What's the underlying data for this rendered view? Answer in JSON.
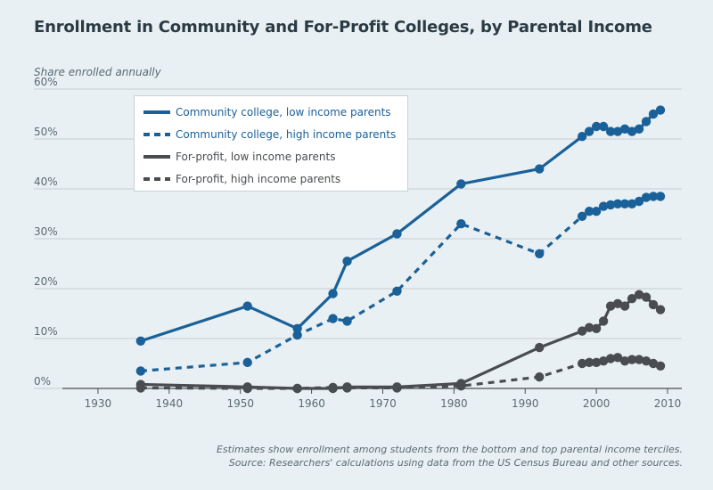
{
  "title": "Enrollment in Community and For-Profit Colleges, by Parental Income",
  "footer": {
    "line1": "Estimates show enrollment among students from the bottom and top parental income terciles.",
    "line2": "Source: Researchers' calculations using data from the US Census Bureau and other sources."
  },
  "chart_data": {
    "type": "line",
    "ylabel": "Share enrolled annually",
    "xlabel": "",
    "xlim": [
      1925,
      2012
    ],
    "ylim": [
      0,
      60
    ],
    "x_ticks": [
      1930,
      1940,
      1950,
      1960,
      1970,
      1980,
      1990,
      2000,
      2010
    ],
    "y_ticks": [
      0,
      10,
      20,
      30,
      40,
      50,
      60
    ],
    "y_tick_labels": [
      "0%",
      "10%",
      "20%",
      "30%",
      "40%",
      "50%",
      "60%"
    ],
    "grid": "horizontal",
    "legend_position": "top-left",
    "series": [
      {
        "name": "Community college, low income parents",
        "color": "#1a6199",
        "dash": "solid",
        "x": [
          1936,
          1951,
          1958,
          1963,
          1965,
          1972,
          1981,
          1992,
          1998,
          1999,
          2000,
          2001,
          2002,
          2003,
          2004,
          2005,
          2006,
          2007,
          2008,
          2009
        ],
        "y": [
          9.5,
          16.5,
          12,
          19,
          25.5,
          31,
          41,
          44,
          50.5,
          51.5,
          52.5,
          52.5,
          51.5,
          51.5,
          52,
          51.5,
          52,
          53.5,
          55,
          55.8
        ]
      },
      {
        "name": "Community college, high income parents",
        "color": "#1a6199",
        "dash": "dashed",
        "x": [
          1936,
          1951,
          1958,
          1963,
          1965,
          1972,
          1981,
          1992,
          1998,
          1999,
          2000,
          2001,
          2002,
          2003,
          2004,
          2005,
          2006,
          2007,
          2008,
          2009
        ],
        "y": [
          3.5,
          5.2,
          10.7,
          14,
          13.5,
          19.5,
          33,
          27,
          34.5,
          35.5,
          35.5,
          36.5,
          36.8,
          37,
          37,
          37,
          37.5,
          38.3,
          38.5,
          38.5
        ]
      },
      {
        "name": "For-profit, low income parents",
        "color": "#4a4d50",
        "dash": "solid",
        "x": [
          1936,
          1951,
          1958,
          1963,
          1965,
          1972,
          1981,
          1992,
          1998,
          1999,
          2000,
          2001,
          2002,
          2003,
          2004,
          2005,
          2006,
          2007,
          2008,
          2009
        ],
        "y": [
          0.8,
          0.3,
          0,
          0,
          0.3,
          0.3,
          1,
          8.2,
          11.5,
          12.2,
          12,
          13.5,
          16.5,
          17,
          16.5,
          18,
          18.8,
          18.3,
          16.8,
          15.8
        ]
      },
      {
        "name": "For-profit, high income parents",
        "color": "#4a4d50",
        "dash": "dashed",
        "x": [
          1936,
          1951,
          1958,
          1963,
          1965,
          1972,
          1981,
          1992,
          1998,
          1999,
          2000,
          2001,
          2002,
          2003,
          2004,
          2005,
          2006,
          2007,
          2008,
          2009
        ],
        "y": [
          0.1,
          0,
          0,
          0.2,
          0.1,
          0.1,
          0.5,
          2.3,
          5,
          5.2,
          5.2,
          5.5,
          6,
          6.2,
          5.5,
          5.8,
          5.8,
          5.5,
          5,
          4.5
        ]
      }
    ]
  }
}
